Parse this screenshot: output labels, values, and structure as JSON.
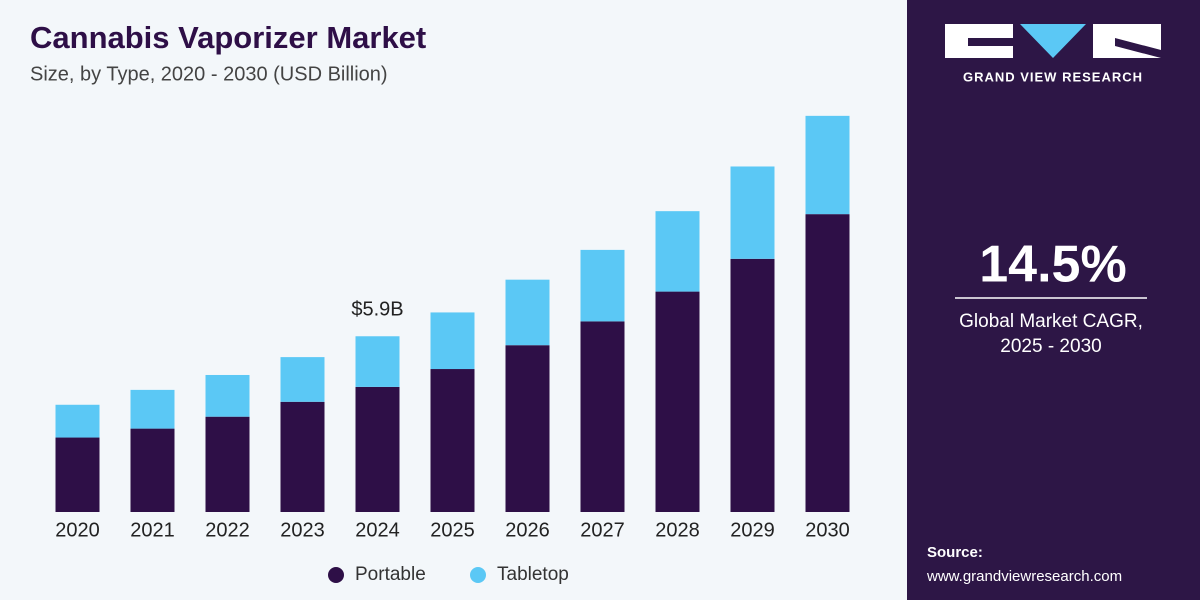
{
  "chart_data": {
    "type": "stacked-bar",
    "title": "Cannabis Vaporizer Market",
    "subtitle": "Size, by Type, 2020 - 2030 (USD Billion)",
    "categories": [
      "2020",
      "2021",
      "2022",
      "2023",
      "2024",
      "2025",
      "2026",
      "2027",
      "2028",
      "2029",
      "2030"
    ],
    "series": [
      {
        "name": "Portable",
        "color": "#2e0f47",
        "values": [
          2.5,
          2.8,
          3.2,
          3.7,
          4.2,
          4.8,
          5.6,
          6.4,
          7.4,
          8.5,
          10.0
        ]
      },
      {
        "name": "Tabletop",
        "color": "#5bc8f5",
        "values": [
          1.1,
          1.3,
          1.4,
          1.5,
          1.7,
          1.9,
          2.2,
          2.4,
          2.7,
          3.1,
          3.3
        ]
      }
    ],
    "ylim": [
      0,
      14
    ],
    "annotation": {
      "category": "2024",
      "text": "$5.9B"
    }
  },
  "panel": {
    "brand": "GRAND VIEW RESEARCH",
    "cagr": "14.5%",
    "cagr_label_1": "Global Market CAGR,",
    "cagr_label_2": "2025 - 2030",
    "source_label": "Source:",
    "source_url": "www.grandviewresearch.com"
  }
}
